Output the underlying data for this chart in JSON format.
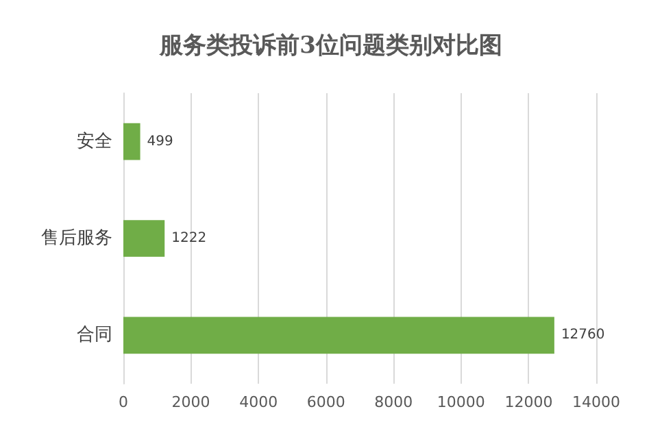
{
  "chart_data": {
    "type": "bar",
    "orientation": "horizontal",
    "title": "服务类投诉前3位问题类别对比图",
    "categories": [
      "安全",
      "售后服务",
      "合同"
    ],
    "values": [
      499,
      1222,
      12760
    ],
    "color": "#70ad47",
    "xlim": [
      0,
      14000
    ],
    "xticks": [
      0,
      2000,
      4000,
      6000,
      8000,
      10000,
      12000,
      14000
    ],
    "grid": "x",
    "data_labels": true
  }
}
